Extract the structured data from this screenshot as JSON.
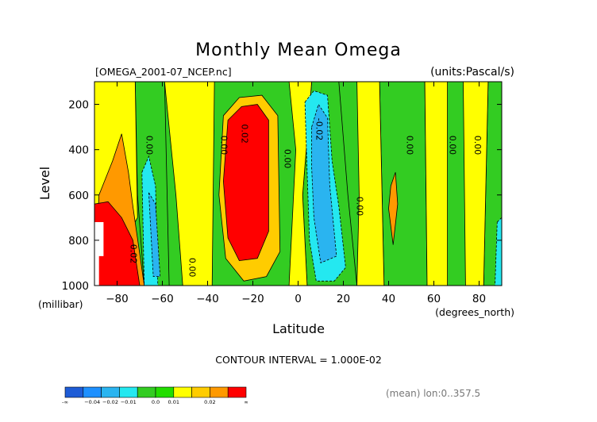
{
  "chart_data": {
    "type": "heatmap",
    "title": "Monthly Mean Omega",
    "file_label": "[OMEGA_2001-07_NCEP.nc]",
    "units_label": "(units:Pascal/s)",
    "xlabel": "Latitude",
    "x_units": "(degrees_north)",
    "ylabel": "Level",
    "y_units": "(millibar)",
    "xlim": [
      -90,
      90
    ],
    "ylim": [
      1000,
      100
    ],
    "x_ticks": [
      -80,
      -60,
      -40,
      -20,
      0,
      20,
      40,
      60,
      80
    ],
    "x_tick_labels": [
      "−80",
      "−60",
      "−40",
      "−20",
      "0",
      "20",
      "40",
      "60",
      "80"
    ],
    "y_ticks": [
      200,
      400,
      600,
      800,
      1000
    ],
    "y_tick_labels": [
      "200",
      "400",
      "600",
      "800",
      "1000"
    ],
    "contour_interval_text": "CONTOUR INTERVAL = 1.000E-02",
    "mean_note": "(mean) lon:0..357.5",
    "colorbar": {
      "colors": [
        "#1e5cd6",
        "#1e90ff",
        "#2ab4f0",
        "#24e8f0",
        "#33cc22",
        "#22dd00",
        "#ffff00",
        "#ffcc00",
        "#ff9900",
        "#ff0000"
      ],
      "labels": [
        "-∞",
        "−0.04",
        "−0.02",
        "−0.01",
        "0.0",
        "0.01",
        "0.02",
        "∞"
      ]
    },
    "contour_labels": [
      {
        "lat": -67,
        "lev": 380,
        "text": "0.00"
      },
      {
        "lat": -34,
        "lev": 380,
        "text": "0.00"
      },
      {
        "lat": -25,
        "lev": 330,
        "text": "0.02"
      },
      {
        "lat": -6,
        "lev": 440,
        "text": "0.00"
      },
      {
        "lat": 8,
        "lev": 310,
        "text": "-0.02"
      },
      {
        "lat": 26,
        "lev": 650,
        "text": "0.00"
      },
      {
        "lat": 48,
        "lev": 380,
        "text": "0.00"
      },
      {
        "lat": 67,
        "lev": 380,
        "text": "0.00"
      },
      {
        "lat": 78,
        "lev": 380,
        "text": "0.00"
      },
      {
        "lat": -48,
        "lev": 920,
        "text": "0.00"
      },
      {
        "lat": -74,
        "lev": 860,
        "text": "0.02"
      }
    ],
    "regions": [
      {
        "level": 4,
        "points": [
          [
            -90,
            100
          ],
          [
            -87,
            1000
          ],
          [
            -68,
            1000
          ],
          [
            -71,
            600
          ],
          [
            -72,
            100
          ]
        ]
      },
      {
        "level": 4,
        "points": [
          [
            -59,
            100
          ],
          [
            -57,
            1000
          ],
          [
            -51,
            1000
          ],
          [
            -47,
            100
          ]
        ]
      },
      {
        "level": 4,
        "points": [
          [
            6,
            100
          ],
          [
            2,
            600
          ],
          [
            4,
            1000
          ],
          [
            26,
            1000
          ],
          [
            22,
            600
          ],
          [
            18,
            100
          ]
        ]
      },
      {
        "level": 4,
        "points": [
          [
            36,
            100
          ],
          [
            38,
            1000
          ],
          [
            57,
            1000
          ],
          [
            56,
            100
          ]
        ]
      },
      {
        "level": 4,
        "points": [
          [
            84,
            100
          ],
          [
            82,
            1000
          ],
          [
            90,
            1000
          ],
          [
            90,
            100
          ]
        ]
      },
      {
        "level": 6,
        "points": [
          [
            -90,
            100
          ],
          [
            -90,
            1000
          ],
          [
            -87,
            1000
          ],
          [
            -71,
            700
          ],
          [
            -72,
            100
          ]
        ]
      },
      {
        "level": 6,
        "points": [
          [
            -59,
            100
          ],
          [
            -54,
            600
          ],
          [
            -51,
            1000
          ],
          [
            -38,
            1000
          ],
          [
            -37,
            100
          ]
        ]
      },
      {
        "level": 6,
        "points": [
          [
            -4,
            100
          ],
          [
            -1,
            400
          ],
          [
            -4,
            1000
          ],
          [
            4,
            1000
          ],
          [
            2,
            600
          ],
          [
            6,
            100
          ]
        ]
      },
      {
        "level": 6,
        "points": [
          [
            26,
            100
          ],
          [
            27,
            600
          ],
          [
            26,
            1000
          ],
          [
            38,
            1000
          ],
          [
            36,
            100
          ]
        ]
      },
      {
        "level": 6,
        "points": [
          [
            56,
            100
          ],
          [
            57,
            1000
          ],
          [
            66,
            1000
          ],
          [
            66,
            100
          ]
        ]
      },
      {
        "level": 6,
        "points": [
          [
            73,
            100
          ],
          [
            74,
            1000
          ],
          [
            82,
            1000
          ],
          [
            84,
            100
          ]
        ]
      },
      {
        "level": 3,
        "points": [
          [
            -69,
            500
          ],
          [
            -66,
            430
          ],
          [
            -63,
            560
          ],
          [
            -62,
            1000
          ],
          [
            -68,
            1000
          ]
        ]
      },
      {
        "level": 3,
        "points": [
          [
            3,
            190
          ],
          [
            7,
            140
          ],
          [
            13,
            160
          ],
          [
            15,
            450
          ],
          [
            18,
            650
          ],
          [
            21,
            920
          ],
          [
            16,
            980
          ],
          [
            8,
            980
          ],
          [
            5,
            800
          ],
          [
            4,
            500
          ]
        ]
      },
      {
        "level": 3,
        "points": [
          [
            88,
            720
          ],
          [
            90,
            700
          ],
          [
            90,
            1000
          ],
          [
            87,
            1000
          ]
        ]
      },
      {
        "level": 2,
        "points": [
          [
            -66,
            590
          ],
          [
            -63,
            640
          ],
          [
            -61,
            960
          ],
          [
            -64,
            960
          ]
        ]
      },
      {
        "level": 2,
        "points": [
          [
            6,
            300
          ],
          [
            9,
            200
          ],
          [
            13,
            260
          ],
          [
            14,
            560
          ],
          [
            17,
            870
          ],
          [
            10,
            900
          ],
          [
            7,
            700
          ],
          [
            6,
            480
          ]
        ]
      },
      {
        "level": 7,
        "points": [
          [
            -33,
            250
          ],
          [
            -26,
            170
          ],
          [
            -16,
            160
          ],
          [
            -9,
            250
          ],
          [
            -8,
            850
          ],
          [
            -14,
            960
          ],
          [
            -24,
            980
          ],
          [
            -32,
            880
          ],
          [
            -35,
            600
          ]
        ]
      },
      {
        "level": 8,
        "points": [
          [
            -88,
            600
          ],
          [
            -82,
            450
          ],
          [
            -78,
            330
          ],
          [
            -75,
            500
          ],
          [
            -73,
            650
          ],
          [
            -68,
            1000
          ],
          [
            -90,
            1000
          ]
        ]
      },
      {
        "level": 8,
        "points": [
          [
            41,
            560
          ],
          [
            43,
            500
          ],
          [
            44,
            640
          ],
          [
            42,
            820
          ],
          [
            40,
            660
          ]
        ]
      },
      {
        "level": 9,
        "points": [
          [
            -31,
            270
          ],
          [
            -25,
            210
          ],
          [
            -18,
            200
          ],
          [
            -13,
            270
          ],
          [
            -13,
            760
          ],
          [
            -18,
            880
          ],
          [
            -26,
            890
          ],
          [
            -31,
            790
          ],
          [
            -33,
            540
          ]
        ]
      },
      {
        "level": 9,
        "points": [
          [
            -90,
            640
          ],
          [
            -84,
            630
          ],
          [
            -78,
            700
          ],
          [
            -73,
            800
          ],
          [
            -70,
            1000
          ],
          [
            -90,
            1000
          ]
        ]
      }
    ],
    "white_mask": {
      "points": [
        [
          -90,
          720
        ],
        [
          -86,
          720
        ],
        [
          -86,
          870
        ],
        [
          -88,
          870
        ],
        [
          -88,
          1000
        ],
        [
          -90,
          1000
        ]
      ]
    }
  }
}
